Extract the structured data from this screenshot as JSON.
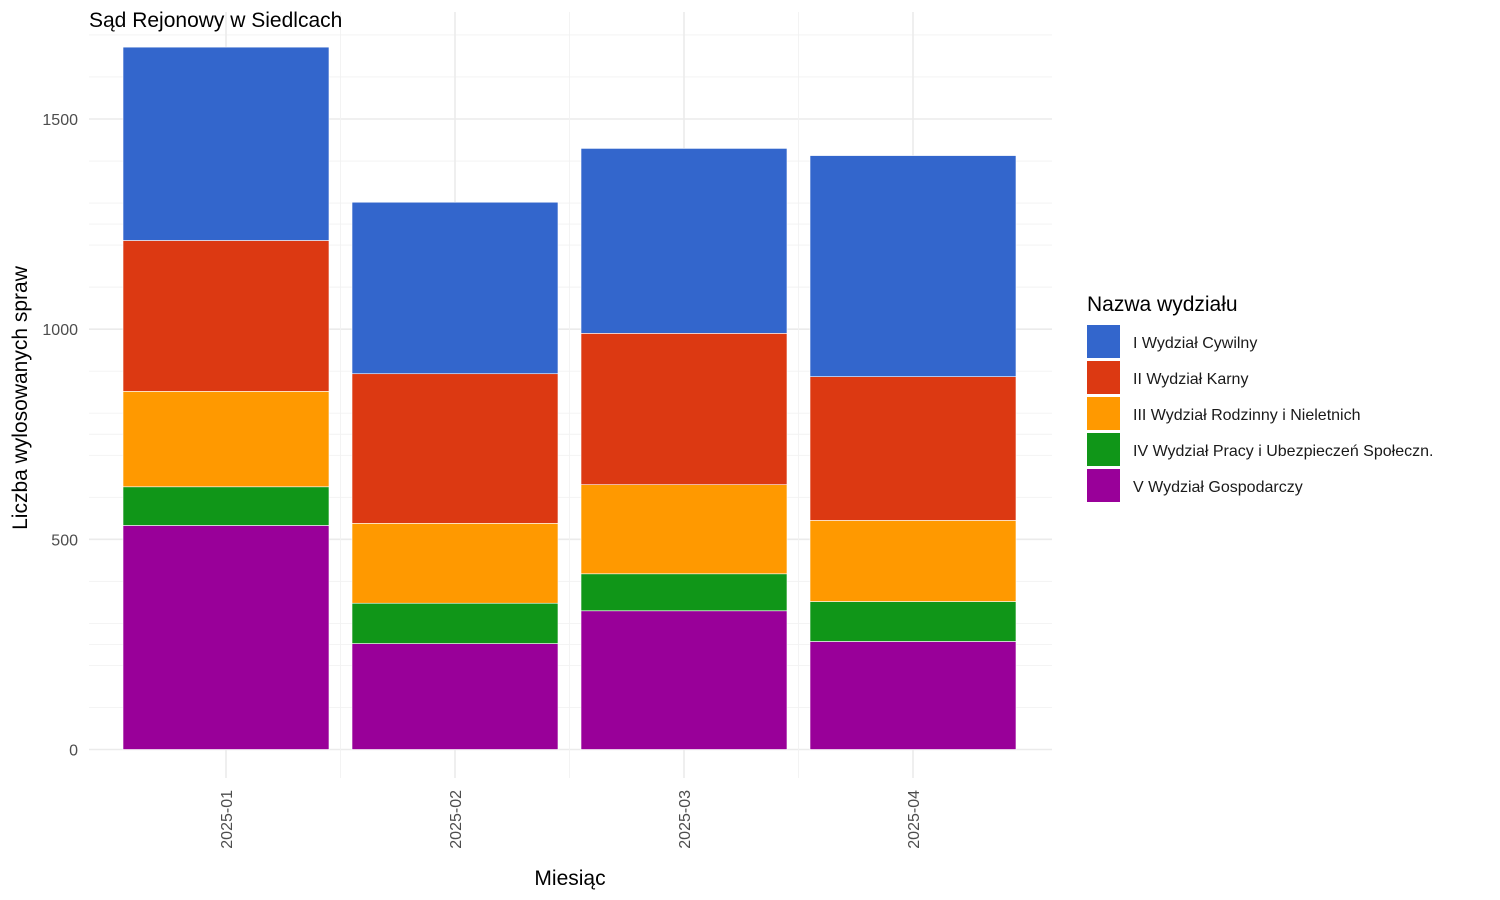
{
  "chart_data": {
    "type": "bar",
    "stacked": true,
    "title": "Sąd Rejonowy w Siedlcach",
    "xlabel": "Miesiąc",
    "ylabel": "Liczba wylosowanych spraw",
    "ylim": [
      0,
      1700
    ],
    "yticks": [
      0,
      500,
      1000,
      1500
    ],
    "grid": true,
    "categories": [
      "2025-01",
      "2025-02",
      "2025-03",
      "2025-04"
    ],
    "legend": {
      "title": "Nazwa wydziału",
      "position": "right"
    },
    "series": [
      {
        "name": "V Wydział Gospodarczy",
        "color": "#990099",
        "values": [
          533,
          252,
          330,
          257
        ]
      },
      {
        "name": "IV Wydział Pracy i Ubezpieczeń Społeczn.",
        "color": "#109618",
        "values": [
          92,
          96,
          88,
          95
        ]
      },
      {
        "name": "III Wydział Rodzinny i Nieletnich",
        "color": "#FF9900",
        "values": [
          227,
          190,
          212,
          193
        ]
      },
      {
        "name": "II Wydział Karny",
        "color": "#DC3912",
        "values": [
          359,
          356,
          360,
          342
        ]
      },
      {
        "name": "I Wydział Cywilny",
        "color": "#3366CC",
        "values": [
          460,
          408,
          440,
          526
        ]
      }
    ],
    "legend_order": [
      "I Wydział Cywilny",
      "II Wydział Karny",
      "III Wydział Rodzinny i Nieletnich",
      "IV Wydział Pracy i Ubezpieczeń Społeczn.",
      "V Wydział Gospodarczy"
    ]
  }
}
